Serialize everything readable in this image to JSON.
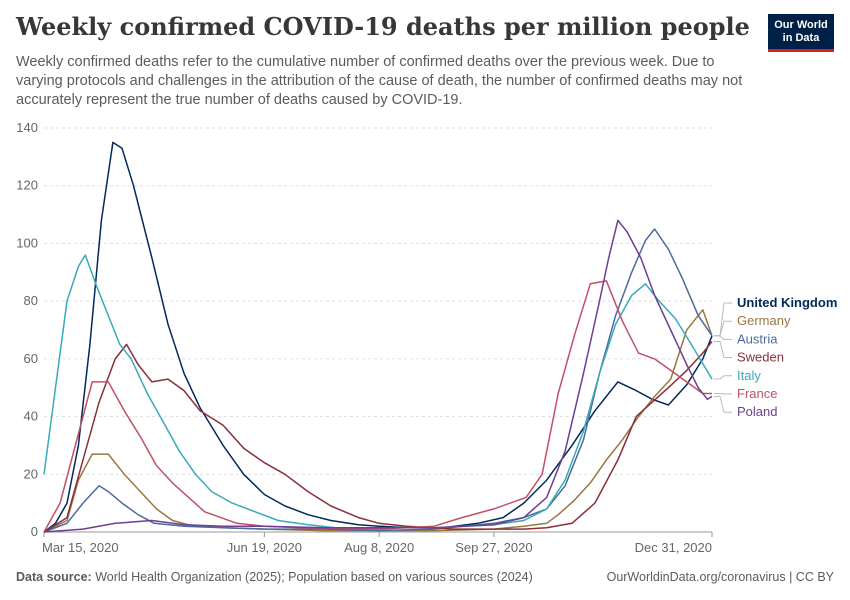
{
  "header": {
    "title": "Weekly confirmed COVID-19 deaths per million people",
    "subtitle": "Weekly confirmed deaths refer to the cumulative number of confirmed deaths over the previous week. Due to varying protocols and challenges in the attribution of the cause of death, the number of confirmed deaths may not accurately represent the true number of deaths caused by COVID-19.",
    "logo_line1": "Our World",
    "logo_line2": "in Data"
  },
  "footer": {
    "source_label": "Data source:",
    "source_text": "World Health Organization (2025); Population based on various sources (2024)",
    "credit": "OurWorldinData.org/coronavirus | CC BY"
  },
  "chart_data": {
    "type": "line",
    "title": "Weekly confirmed COVID-19 deaths per million people",
    "xlabel": "",
    "ylabel": "",
    "xlim": [
      "2020-03-15",
      "2020-12-31"
    ],
    "ylim": [
      0,
      140
    ],
    "y_ticks": [
      0,
      20,
      40,
      60,
      80,
      100,
      120,
      140
    ],
    "x_ticks": [
      "2020-03-15",
      "2020-06-19",
      "2020-08-08",
      "2020-09-27",
      "2020-12-31"
    ],
    "x_tick_labels": [
      "Mar 15, 2020",
      "Jun 19, 2020",
      "Aug 8, 2020",
      "Sep 27, 2020",
      "Dec 31, 2020"
    ],
    "grid": "horizontal dashed",
    "legend_position": "right",
    "series": [
      {
        "name": "United Kingdom",
        "color": "#00295b",
        "points": [
          [
            "2020-03-15",
            0
          ],
          [
            "2020-03-20",
            3
          ],
          [
            "2020-03-25",
            10
          ],
          [
            "2020-03-30",
            30
          ],
          [
            "2020-04-04",
            65
          ],
          [
            "2020-04-09",
            108
          ],
          [
            "2020-04-14",
            135
          ],
          [
            "2020-04-18",
            133
          ],
          [
            "2020-04-23",
            120
          ],
          [
            "2020-05-01",
            95
          ],
          [
            "2020-05-08",
            72
          ],
          [
            "2020-05-15",
            55
          ],
          [
            "2020-05-22",
            43
          ],
          [
            "2020-06-01",
            30
          ],
          [
            "2020-06-10",
            20
          ],
          [
            "2020-06-19",
            13
          ],
          [
            "2020-06-28",
            9
          ],
          [
            "2020-07-08",
            6
          ],
          [
            "2020-07-18",
            4
          ],
          [
            "2020-07-30",
            2.5
          ],
          [
            "2020-08-08",
            2
          ],
          [
            "2020-08-20",
            1.5
          ],
          [
            "2020-09-05",
            1.5
          ],
          [
            "2020-09-20",
            3
          ],
          [
            "2020-10-01",
            5
          ],
          [
            "2020-10-10",
            10
          ],
          [
            "2020-10-20",
            18
          ],
          [
            "2020-10-31",
            30
          ],
          [
            "2020-11-10",
            42
          ],
          [
            "2020-11-20",
            52
          ],
          [
            "2020-11-28",
            49
          ],
          [
            "2020-12-05",
            46
          ],
          [
            "2020-12-12",
            44
          ],
          [
            "2020-12-20",
            51
          ],
          [
            "2020-12-27",
            60
          ],
          [
            "2020-12-31",
            68
          ]
        ]
      },
      {
        "name": "Germany",
        "color": "#9c7542",
        "points": [
          [
            "2020-03-15",
            0
          ],
          [
            "2020-03-25",
            4
          ],
          [
            "2020-03-30",
            18
          ],
          [
            "2020-04-05",
            27
          ],
          [
            "2020-04-12",
            27
          ],
          [
            "2020-04-19",
            20
          ],
          [
            "2020-04-26",
            14
          ],
          [
            "2020-05-03",
            8
          ],
          [
            "2020-05-10",
            4
          ],
          [
            "2020-05-17",
            2.5
          ],
          [
            "2020-06-01",
            1.5
          ],
          [
            "2020-06-19",
            1
          ],
          [
            "2020-07-15",
            0.5
          ],
          [
            "2020-08-08",
            0.5
          ],
          [
            "2020-09-01",
            0.5
          ],
          [
            "2020-09-27",
            1
          ],
          [
            "2020-10-10",
            2
          ],
          [
            "2020-10-20",
            3
          ],
          [
            "2020-10-25",
            6
          ],
          [
            "2020-11-01",
            11
          ],
          [
            "2020-11-08",
            17
          ],
          [
            "2020-11-15",
            25
          ],
          [
            "2020-11-22",
            32
          ],
          [
            "2020-11-29",
            40
          ],
          [
            "2020-12-06",
            47
          ],
          [
            "2020-12-13",
            53
          ],
          [
            "2020-12-20",
            70
          ],
          [
            "2020-12-27",
            77
          ],
          [
            "2020-12-31",
            68
          ]
        ]
      },
      {
        "name": "Austria",
        "color": "#4c6a9c",
        "points": [
          [
            "2020-03-15",
            0
          ],
          [
            "2020-03-25",
            3
          ],
          [
            "2020-04-01",
            10
          ],
          [
            "2020-04-08",
            16
          ],
          [
            "2020-04-12",
            14
          ],
          [
            "2020-04-18",
            10
          ],
          [
            "2020-04-25",
            6
          ],
          [
            "2020-05-02",
            3
          ],
          [
            "2020-05-15",
            2
          ],
          [
            "2020-06-01",
            1.5
          ],
          [
            "2020-06-19",
            1
          ],
          [
            "2020-07-15",
            1
          ],
          [
            "2020-08-08",
            0.5
          ],
          [
            "2020-09-01",
            1
          ],
          [
            "2020-09-27",
            3
          ],
          [
            "2020-10-10",
            5
          ],
          [
            "2020-10-20",
            8
          ],
          [
            "2020-10-28",
            16
          ],
          [
            "2020-11-05",
            32
          ],
          [
            "2020-11-12",
            55
          ],
          [
            "2020-11-19",
            75
          ],
          [
            "2020-11-26",
            90
          ],
          [
            "2020-12-02",
            101
          ],
          [
            "2020-12-06",
            105
          ],
          [
            "2020-12-12",
            98
          ],
          [
            "2020-12-18",
            88
          ],
          [
            "2020-12-25",
            75
          ],
          [
            "2020-12-31",
            68
          ]
        ]
      },
      {
        "name": "Sweden",
        "color": "#883039",
        "points": [
          [
            "2020-03-15",
            0
          ],
          [
            "2020-03-25",
            5
          ],
          [
            "2020-04-01",
            25
          ],
          [
            "2020-04-08",
            45
          ],
          [
            "2020-04-15",
            60
          ],
          [
            "2020-04-20",
            65
          ],
          [
            "2020-04-25",
            58
          ],
          [
            "2020-05-01",
            52
          ],
          [
            "2020-05-08",
            53
          ],
          [
            "2020-05-15",
            49
          ],
          [
            "2020-05-22",
            42
          ],
          [
            "2020-06-01",
            37
          ],
          [
            "2020-06-10",
            29
          ],
          [
            "2020-06-19",
            24
          ],
          [
            "2020-06-28",
            20
          ],
          [
            "2020-07-08",
            14
          ],
          [
            "2020-07-18",
            9
          ],
          [
            "2020-07-30",
            5
          ],
          [
            "2020-08-08",
            3
          ],
          [
            "2020-08-20",
            2
          ],
          [
            "2020-09-10",
            1
          ],
          [
            "2020-09-27",
            1
          ],
          [
            "2020-10-10",
            1
          ],
          [
            "2020-10-20",
            1.5
          ],
          [
            "2020-10-31",
            3
          ],
          [
            "2020-11-10",
            10
          ],
          [
            "2020-11-20",
            25
          ],
          [
            "2020-11-28",
            40
          ],
          [
            "2020-12-05",
            45
          ],
          [
            "2020-12-12",
            50
          ],
          [
            "2020-12-20",
            56
          ],
          [
            "2020-12-27",
            62
          ],
          [
            "2020-12-31",
            66
          ]
        ]
      },
      {
        "name": "Italy",
        "color": "#38aaba",
        "points": [
          [
            "2020-03-15",
            20
          ],
          [
            "2020-03-20",
            50
          ],
          [
            "2020-03-25",
            80
          ],
          [
            "2020-03-30",
            92
          ],
          [
            "2020-04-02",
            96
          ],
          [
            "2020-04-07",
            85
          ],
          [
            "2020-04-12",
            75
          ],
          [
            "2020-04-17",
            65
          ],
          [
            "2020-04-22",
            60
          ],
          [
            "2020-04-29",
            48
          ],
          [
            "2020-05-06",
            38
          ],
          [
            "2020-05-13",
            28
          ],
          [
            "2020-05-20",
            20
          ],
          [
            "2020-05-27",
            14
          ],
          [
            "2020-06-05",
            10
          ],
          [
            "2020-06-15",
            7
          ],
          [
            "2020-06-25",
            4
          ],
          [
            "2020-07-08",
            2.5
          ],
          [
            "2020-07-20",
            1.5
          ],
          [
            "2020-08-08",
            1.5
          ],
          [
            "2020-09-01",
            1.5
          ],
          [
            "2020-09-27",
            2.5
          ],
          [
            "2020-10-10",
            4
          ],
          [
            "2020-10-20",
            8
          ],
          [
            "2020-10-28",
            18
          ],
          [
            "2020-11-05",
            35
          ],
          [
            "2020-11-12",
            55
          ],
          [
            "2020-11-19",
            72
          ],
          [
            "2020-11-26",
            82
          ],
          [
            "2020-12-02",
            86
          ],
          [
            "2020-12-08",
            80
          ],
          [
            "2020-12-15",
            74
          ],
          [
            "2020-12-22",
            65
          ],
          [
            "2020-12-31",
            53
          ]
        ]
      },
      {
        "name": "France",
        "color": "#c15065",
        "points": [
          [
            "2020-03-15",
            0
          ],
          [
            "2020-03-22",
            10
          ],
          [
            "2020-03-29",
            31
          ],
          [
            "2020-04-05",
            52
          ],
          [
            "2020-04-12",
            52
          ],
          [
            "2020-04-19",
            42
          ],
          [
            "2020-04-26",
            33
          ],
          [
            "2020-05-03",
            23
          ],
          [
            "2020-05-10",
            17
          ],
          [
            "2020-05-17",
            12
          ],
          [
            "2020-05-24",
            7
          ],
          [
            "2020-05-31",
            5
          ],
          [
            "2020-06-07",
            3
          ],
          [
            "2020-06-19",
            2
          ],
          [
            "2020-07-05",
            1.5
          ],
          [
            "2020-08-08",
            1
          ],
          [
            "2020-09-01",
            2
          ],
          [
            "2020-09-13",
            5
          ],
          [
            "2020-09-27",
            8
          ],
          [
            "2020-10-11",
            12
          ],
          [
            "2020-10-18",
            20
          ],
          [
            "2020-10-25",
            48
          ],
          [
            "2020-11-01",
            68
          ],
          [
            "2020-11-08",
            86
          ],
          [
            "2020-11-15",
            87
          ],
          [
            "2020-11-22",
            73
          ],
          [
            "2020-11-29",
            62
          ],
          [
            "2020-12-06",
            60
          ],
          [
            "2020-12-13",
            56
          ],
          [
            "2020-12-20",
            52
          ],
          [
            "2020-12-27",
            48
          ],
          [
            "2020-12-31",
            48
          ]
        ]
      },
      {
        "name": "Poland",
        "color": "#6d3e91",
        "points": [
          [
            "2020-03-15",
            0
          ],
          [
            "2020-04-01",
            1
          ],
          [
            "2020-04-15",
            3
          ],
          [
            "2020-05-01",
            4
          ],
          [
            "2020-05-15",
            2.5
          ],
          [
            "2020-06-01",
            2
          ],
          [
            "2020-06-19",
            2
          ],
          [
            "2020-07-15",
            1.5
          ],
          [
            "2020-08-08",
            1.5
          ],
          [
            "2020-09-01",
            1.5
          ],
          [
            "2020-09-27",
            2.5
          ],
          [
            "2020-10-10",
            5
          ],
          [
            "2020-10-20",
            12
          ],
          [
            "2020-10-28",
            28
          ],
          [
            "2020-11-05",
            55
          ],
          [
            "2020-11-12",
            80
          ],
          [
            "2020-11-16",
            95
          ],
          [
            "2020-11-20",
            108
          ],
          [
            "2020-11-24",
            104
          ],
          [
            "2020-11-30",
            95
          ],
          [
            "2020-12-06",
            82
          ],
          [
            "2020-12-13",
            70
          ],
          [
            "2020-12-20",
            58
          ],
          [
            "2020-12-25",
            50
          ],
          [
            "2020-12-29",
            46
          ],
          [
            "2020-12-31",
            47
          ]
        ]
      }
    ]
  }
}
